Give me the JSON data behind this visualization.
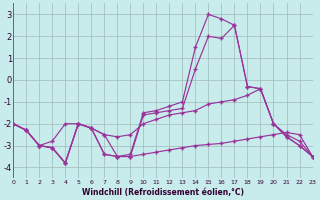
{
  "bg_color": "#c8ecec",
  "grid_color": "#a0b8b8",
  "line_color": "#993399",
  "xlim": [
    0,
    23
  ],
  "ylim": [
    -4.5,
    3.5
  ],
  "yticks": [
    -4,
    -3,
    -2,
    -1,
    0,
    1,
    2,
    3
  ],
  "xticks": [
    0,
    1,
    2,
    3,
    4,
    5,
    6,
    7,
    8,
    9,
    10,
    11,
    12,
    13,
    14,
    15,
    16,
    17,
    18,
    19,
    20,
    21,
    22,
    23
  ],
  "xlabel": "Windchill (Refroidissement éolien,°C)",
  "line1_y": [
    -2.0,
    -2.3,
    -3.0,
    -3.1,
    -3.8,
    -2.0,
    -2.2,
    -2.5,
    -3.5,
    -3.5,
    -3.4,
    -3.3,
    -3.2,
    -3.1,
    -3.0,
    -2.95,
    -2.9,
    -2.8,
    -2.7,
    -2.6,
    -2.5,
    -2.4,
    -2.5,
    -3.5
  ],
  "line2_y": [
    -2.0,
    -2.3,
    -3.0,
    -3.1,
    -3.8,
    -2.0,
    -2.2,
    -3.4,
    -3.5,
    -3.5,
    -1.6,
    -1.5,
    -1.4,
    -1.3,
    0.5,
    2.0,
    1.9,
    2.5,
    -0.3,
    -0.4,
    -2.0,
    -2.6,
    -3.0,
    -3.5
  ],
  "line3_y": [
    -2.0,
    -2.3,
    -3.0,
    -3.1,
    -3.8,
    -2.0,
    -2.2,
    -3.4,
    -3.5,
    -3.4,
    -1.5,
    -1.4,
    -1.2,
    -1.0,
    1.5,
    3.0,
    2.8,
    2.5,
    -0.3,
    -0.4,
    -2.0,
    -2.6,
    -3.0,
    -3.5
  ],
  "line4_y": [
    -2.0,
    -2.3,
    -3.0,
    -2.8,
    -2.0,
    -2.0,
    -2.2,
    -2.5,
    -2.6,
    -2.5,
    -2.0,
    -1.8,
    -1.6,
    -1.5,
    -1.4,
    -1.1,
    -1.0,
    -0.9,
    -0.7,
    -0.4,
    -2.0,
    -2.5,
    -2.8,
    -3.5
  ]
}
